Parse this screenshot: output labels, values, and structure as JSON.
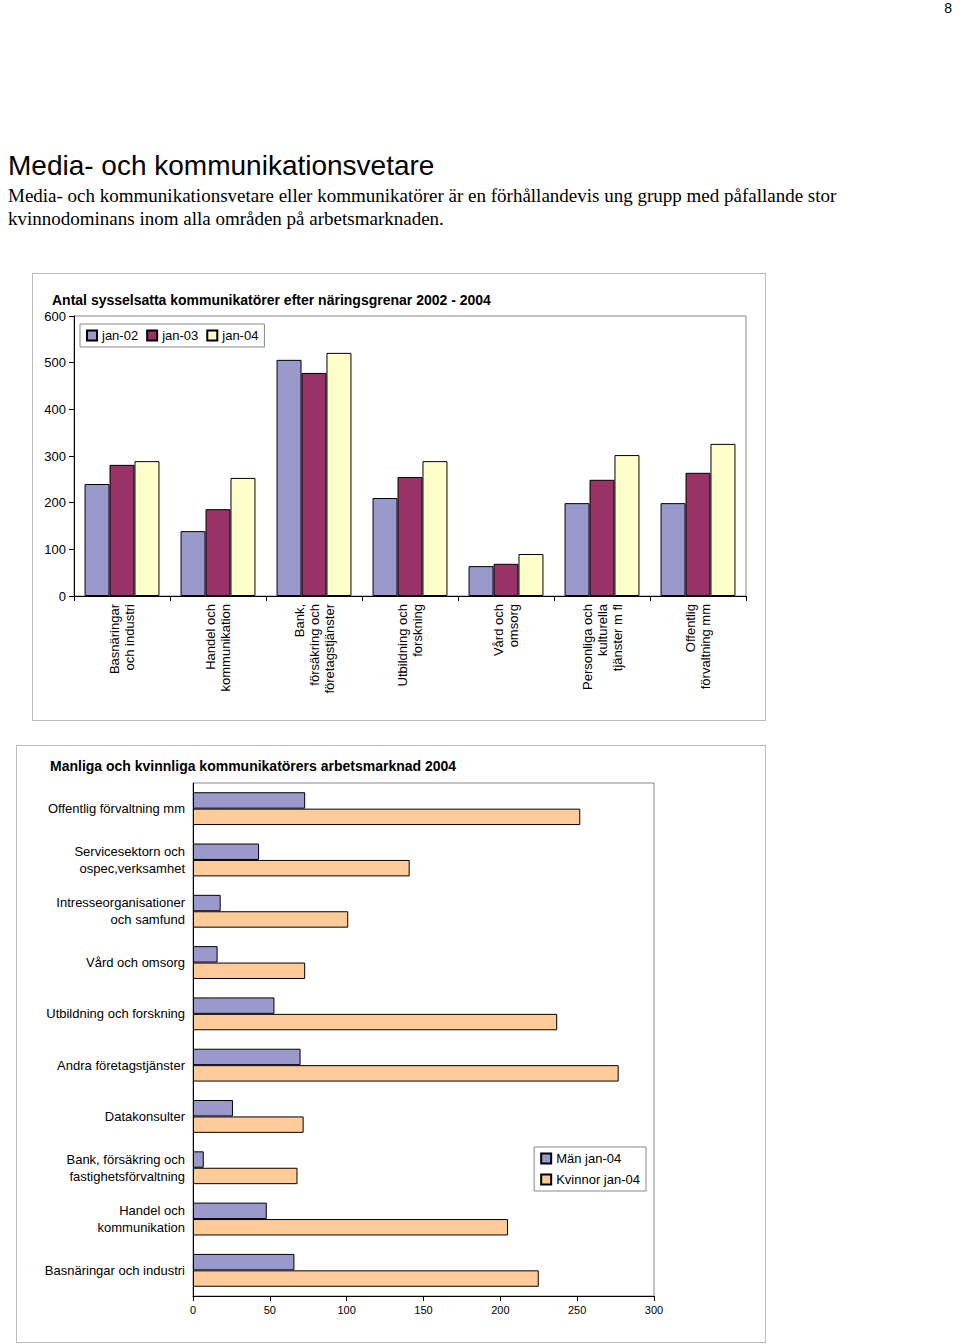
{
  "page": {
    "page_number": "8",
    "heading": "Media- och kommunikationsvetare",
    "text": "Media- och kommunikationsvetare eller kommunikatörer är en förhållandevis ung grupp med påfallande stor kvinnodominans inom alla områden på arbetsmarknaden."
  },
  "chart_data": [
    {
      "type": "bar",
      "title": "Antal sysselsatta kommunikatörer efter näringsgrenar 2002 - 2004",
      "categories": [
        "Basnäringar\noch industri",
        "Handel och\nkommunikation",
        "Bank,\nförsäkring och\nföretagstjänster",
        "Utbildning och\nforskning",
        "Vård och\nomsorg",
        "Personliga och\nkulturella\ntjänster m fl",
        "Offentlig\nförvaltning mm"
      ],
      "series": [
        {
          "name": "jan-02",
          "color": "#9999cc",
          "values": [
            240,
            139,
            506,
            210,
            64,
            199,
            199
          ]
        },
        {
          "name": "jan-03",
          "color": "#993366",
          "values": [
            281,
            186,
            478,
            255,
            69,
            249,
            264
          ]
        },
        {
          "name": "jan-04",
          "color": "#ffffcc",
          "values": [
            289,
            253,
            521,
            289,
            90,
            302,
            326
          ]
        }
      ],
      "ylim": [
        0,
        600
      ],
      "yticks": [
        0,
        100,
        200,
        300,
        400,
        500,
        600
      ],
      "grid": false,
      "legend": "upper left"
    },
    {
      "type": "bar",
      "orientation": "horizontal",
      "title": "Manliga och kvinnliga kommunikatörers arbetsmarknad 2004",
      "categories": [
        "Offentlig förvaltning mm",
        "Servicesektorn och\nospec,verksamhet",
        "Intresseorganisationer\noch samfund",
        "Vård och omsorg",
        "Utbildning och forskning",
        "Andra företagstjänster",
        "Datakonsulter",
        "Bank, försäkring och\nfastighetsförvaltning",
        "Handel och\nkommunikation",
        "Basnäringar och industri"
      ],
      "series": [
        {
          "name": "Män jan-04",
          "color": "#9999cc",
          "values": [
            73,
            43,
            18,
            16,
            53,
            70,
            26,
            7,
            48,
            66
          ]
        },
        {
          "name": "Kvinnor jan-04",
          "color": "#ffcc99",
          "values": [
            252,
            141,
            101,
            73,
            237,
            277,
            72,
            68,
            205,
            225
          ]
        }
      ],
      "xlim": [
        0,
        300
      ],
      "xticks": [
        0,
        50,
        100,
        150,
        200,
        250,
        300
      ],
      "grid": false,
      "legend": "lower right"
    }
  ]
}
